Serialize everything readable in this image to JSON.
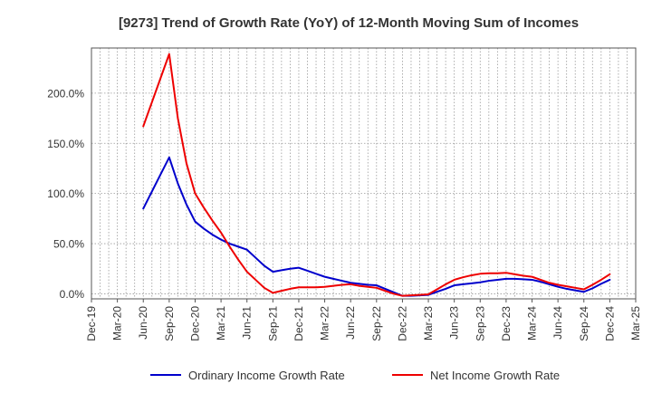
{
  "chart_data": {
    "type": "line",
    "title": "[9273]  Trend of Growth Rate (YoY) of 12-Month Moving Sum of Incomes",
    "xlabel": "",
    "ylabel": "",
    "x_ticks": [
      "Dec-19",
      "Mar-20",
      "Jun-20",
      "Sep-20",
      "Dec-20",
      "Mar-21",
      "Jun-21",
      "Sep-21",
      "Dec-21",
      "Mar-22",
      "Jun-22",
      "Sep-22",
      "Dec-22",
      "Mar-23",
      "Jun-23",
      "Sep-23",
      "Dec-23",
      "Mar-24",
      "Jun-24",
      "Sep-24",
      "Dec-24",
      "Mar-25"
    ],
    "y_ticks": [
      0,
      50,
      100,
      150,
      200
    ],
    "y_tick_labels": [
      "0.0%",
      "50.0%",
      "100.0%",
      "150.0%",
      "200.0%"
    ],
    "ylim": [
      -5,
      245
    ],
    "grid": true,
    "legend_position": "bottom",
    "series": [
      {
        "name": "Ordinary Income Growth Rate",
        "color": "#0000cc",
        "x": [
          "Jun-20",
          "Jul-20",
          "Aug-20",
          "Sep-20",
          "Oct-20",
          "Nov-20",
          "Dec-20",
          "Jan-21",
          "Feb-21",
          "Mar-21",
          "Apr-21",
          "May-21",
          "Jun-21",
          "Jul-21",
          "Aug-21",
          "Sep-21",
          "Oct-21",
          "Nov-21",
          "Dec-21",
          "Jan-22",
          "Feb-22",
          "Mar-22",
          "Apr-22",
          "May-22",
          "Jun-22",
          "Jul-22",
          "Aug-22",
          "Sep-22",
          "Oct-22",
          "Nov-22",
          "Dec-22",
          "Jan-23",
          "Feb-23",
          "Mar-23",
          "Apr-23",
          "May-23",
          "Jun-23",
          "Jul-23",
          "Aug-23",
          "Sep-23",
          "Oct-23",
          "Nov-23",
          "Dec-23",
          "Jan-24",
          "Feb-24",
          "Mar-24",
          "Apr-24",
          "May-24",
          "Jun-24",
          "Jul-24",
          "Aug-24",
          "Sep-24",
          "Oct-24",
          "Nov-24",
          "Dec-24"
        ],
        "values": [
          85,
          102,
          119,
          136,
          110,
          89,
          72,
          65,
          59,
          54,
          50,
          47,
          44,
          36,
          28,
          22,
          23.5,
          25,
          26,
          23,
          20,
          17,
          15,
          13,
          11,
          10,
          9,
          8.5,
          5,
          1.5,
          -2,
          -2,
          -1.5,
          -1,
          2,
          5,
          8.5,
          9.5,
          10.5,
          11.5,
          13,
          14,
          15,
          15,
          14.5,
          14,
          12,
          9.5,
          7,
          5,
          3.5,
          2,
          5.5,
          10,
          14
        ]
      },
      {
        "name": "Net Income Growth Rate",
        "color": "#ee0000",
        "x": [
          "Jun-20",
          "Jul-20",
          "Aug-20",
          "Sep-20",
          "Oct-20",
          "Nov-20",
          "Dec-20",
          "Jan-21",
          "Feb-21",
          "Mar-21",
          "Apr-21",
          "May-21",
          "Jun-21",
          "Jul-21",
          "Aug-21",
          "Sep-21",
          "Oct-21",
          "Nov-21",
          "Dec-21",
          "Jan-22",
          "Feb-22",
          "Mar-22",
          "Apr-22",
          "May-22",
          "Jun-22",
          "Jul-22",
          "Aug-22",
          "Sep-22",
          "Oct-22",
          "Nov-22",
          "Dec-22",
          "Jan-23",
          "Feb-23",
          "Mar-23",
          "Apr-23",
          "May-23",
          "Jun-23",
          "Jul-23",
          "Aug-23",
          "Sep-23",
          "Oct-23",
          "Nov-23",
          "Dec-23",
          "Jan-24",
          "Feb-24",
          "Mar-24",
          "Apr-24",
          "May-24",
          "Jun-24",
          "Jul-24",
          "Aug-24",
          "Sep-24",
          "Oct-24",
          "Nov-24",
          "Dec-24"
        ],
        "values": [
          167,
          191,
          215,
          239,
          175,
          130,
          100,
          86,
          73,
          61,
          47,
          34,
          22,
          14,
          6,
          1,
          3,
          5,
          6.5,
          6.5,
          6.5,
          7,
          8,
          9,
          9.5,
          8,
          7,
          6,
          3,
          0,
          -2,
          -1.5,
          -1,
          -0.5,
          4.5,
          9.5,
          14,
          16.5,
          18.5,
          20,
          20.5,
          20.5,
          21,
          19.5,
          18,
          17,
          14,
          11,
          9,
          7.5,
          6,
          4.5,
          9,
          14,
          19.5
        ]
      }
    ]
  }
}
